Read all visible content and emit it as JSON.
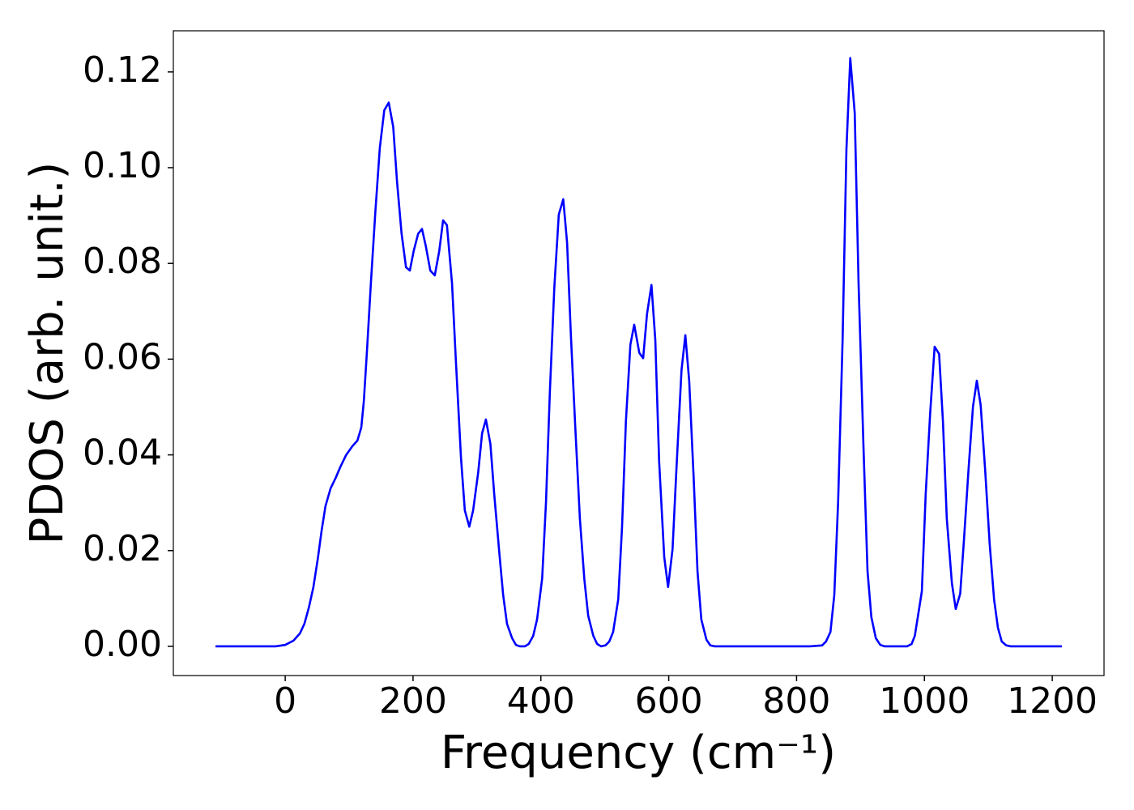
{
  "chart_data": {
    "type": "line",
    "xlabel": "Frequency (cm⁻¹)",
    "ylabel": "PDOS (arb. unit.)",
    "color": "#0000ff",
    "xlim": [
      -175,
      1281
    ],
    "ylim": [
      -0.0061,
      0.1286
    ],
    "xticks": [
      0,
      200,
      400,
      600,
      800,
      1000,
      1200
    ],
    "yticks": [
      {
        "value": 0,
        "label": "0.00"
      },
      {
        "value": 0.02,
        "label": "0.02"
      },
      {
        "value": 0.04,
        "label": "0.04"
      },
      {
        "value": 0.06,
        "label": "0.06"
      },
      {
        "value": 0.08,
        "label": "0.08"
      },
      {
        "value": 0.1,
        "label": "0.10"
      },
      {
        "value": 0.12,
        "label": "0.12"
      }
    ],
    "x": [
      -109,
      -15,
      0,
      13,
      23,
      30,
      37,
      44,
      51,
      57,
      63,
      71,
      79,
      86,
      95,
      105,
      113,
      119,
      123,
      128,
      134,
      141,
      148,
      155,
      162,
      169,
      175,
      182,
      189,
      195,
      201,
      208,
      214,
      220,
      227,
      234,
      241,
      247,
      253,
      261,
      267,
      275,
      281,
      288,
      294,
      302,
      308,
      314,
      321,
      327,
      335,
      341,
      347,
      355,
      361,
      367,
      375,
      381,
      388,
      394,
      402,
      408,
      414,
      421,
      428,
      435,
      441,
      447,
      454,
      461,
      468,
      474,
      482,
      488,
      494,
      501,
      507,
      513,
      521,
      527,
      533,
      540,
      546,
      554,
      560,
      566,
      573,
      579,
      585,
      593,
      599,
      606,
      612,
      620,
      626,
      632,
      639,
      645,
      651,
      659,
      665,
      672,
      821,
      840,
      846,
      853,
      859,
      865,
      872,
      878,
      884,
      891,
      897,
      905,
      911,
      917,
      924,
      931,
      938,
      973,
      980,
      985,
      990,
      996,
      1002,
      1009,
      1016,
      1023,
      1029,
      1035,
      1043,
      1049,
      1056,
      1062,
      1069,
      1076,
      1082,
      1088,
      1095,
      1102,
      1109,
      1115,
      1121,
      1128,
      1135,
      1215
    ],
    "values": [
      0,
      0,
      0.0003,
      0.0012,
      0.0027,
      0.0047,
      0.0081,
      0.0123,
      0.0183,
      0.0242,
      0.0293,
      0.033,
      0.0352,
      0.0374,
      0.0399,
      0.0418,
      0.043,
      0.0457,
      0.0512,
      0.0619,
      0.0758,
      0.0907,
      0.1041,
      0.112,
      0.1136,
      0.1085,
      0.097,
      0.0863,
      0.0792,
      0.0785,
      0.0826,
      0.0862,
      0.0872,
      0.0836,
      0.0785,
      0.0775,
      0.0826,
      0.089,
      0.088,
      0.0758,
      0.0597,
      0.0394,
      0.0284,
      0.025,
      0.0284,
      0.0364,
      0.0445,
      0.0474,
      0.0423,
      0.0318,
      0.0195,
      0.0107,
      0.0047,
      0.0017,
      0.0003,
      0,
      0,
      0.0005,
      0.0022,
      0.0056,
      0.0142,
      0.0301,
      0.053,
      0.0749,
      0.0902,
      0.0934,
      0.0843,
      0.0648,
      0.0453,
      0.0267,
      0.014,
      0.0064,
      0.0022,
      0.0005,
      0,
      0.0002,
      0.001,
      0.003,
      0.0098,
      0.025,
      0.047,
      0.063,
      0.0672,
      0.0613,
      0.0602,
      0.0694,
      0.0755,
      0.064,
      0.0386,
      0.0186,
      0.0124,
      0.0203,
      0.0369,
      0.0577,
      0.065,
      0.0555,
      0.0352,
      0.0157,
      0.0056,
      0.0014,
      0.0002,
      0,
      0,
      0.0002,
      0.001,
      0.003,
      0.0107,
      0.0301,
      0.064,
      0.1038,
      0.1229,
      0.1114,
      0.0758,
      0.0403,
      0.0157,
      0.0061,
      0.0017,
      0.0003,
      0,
      0,
      0.0005,
      0.0022,
      0.0064,
      0.0115,
      0.0318,
      0.0487,
      0.0626,
      0.0611,
      0.047,
      0.0267,
      0.0132,
      0.0078,
      0.011,
      0.0225,
      0.0369,
      0.0501,
      0.0555,
      0.0504,
      0.0369,
      0.0216,
      0.0098,
      0.0039,
      0.001,
      0.0002,
      0,
      0
    ]
  }
}
